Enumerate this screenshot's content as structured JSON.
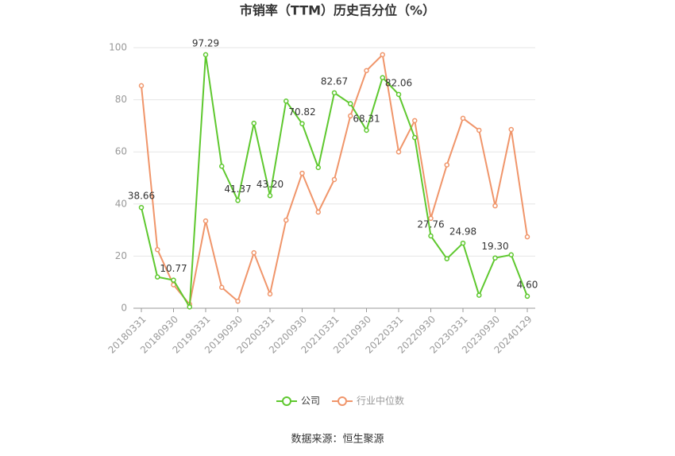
{
  "chart_data": {
    "type": "line",
    "title": "市销率（TTM）历史百分位（%）",
    "source": "数据来源：恒生聚源",
    "categories": [
      "20180331",
      null,
      "20180930",
      null,
      "20190331",
      null,
      "20190930",
      null,
      "20200331",
      null,
      "20200930",
      null,
      "20210331",
      null,
      "20210930",
      null,
      "20220331",
      null,
      "20220930",
      null,
      "20230331",
      null,
      "20230930",
      null,
      "20240129"
    ],
    "series": [
      {
        "name": "公司",
        "color": "#5ec82e",
        "values": [
          38.66,
          12,
          10.77,
          0.5,
          97.29,
          54.5,
          41.37,
          71,
          43.2,
          79.5,
          70.82,
          54,
          82.67,
          78.5,
          68.31,
          88.5,
          82.06,
          65.5,
          27.76,
          19,
          24.98,
          5,
          19.3,
          20.5,
          4.6
        ],
        "value_labels": [
          "38.66",
          null,
          "10.77",
          null,
          "97.29",
          null,
          "41.37",
          null,
          "43.20",
          null,
          "70.82",
          null,
          "82.67",
          null,
          "68.31",
          null,
          "82.06",
          null,
          "27.76",
          null,
          "24.98",
          null,
          "19.30",
          null,
          "4.60"
        ]
      },
      {
        "name": "行业中位数",
        "color": "#f0956a",
        "values": [
          85.4,
          22.5,
          9,
          1.5,
          33.5,
          8,
          2.7,
          21.3,
          5.5,
          33.8,
          51.8,
          36.9,
          49.4,
          73.8,
          91.2,
          97.3,
          60,
          72,
          34.5,
          55,
          72.9,
          68.3,
          39.3,
          68.6,
          27.4
        ]
      }
    ],
    "ylim": [
      0,
      100
    ],
    "yticks": [
      0,
      20,
      40,
      60,
      80,
      100
    ],
    "grid": true
  }
}
